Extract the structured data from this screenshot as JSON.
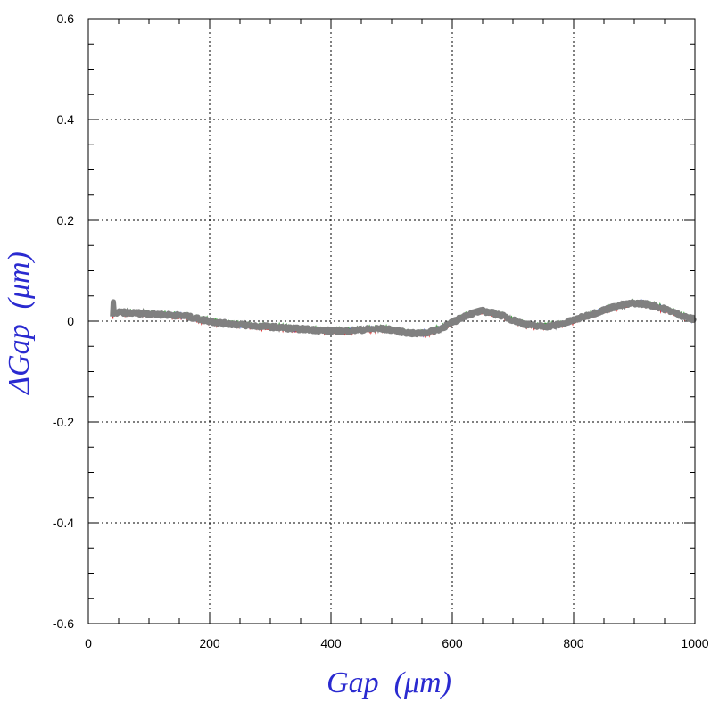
{
  "chart_data": {
    "type": "line",
    "title": "",
    "xlabel": "Gap  (μm)",
    "ylabel": "ΔGap  (μm)",
    "xlim": [
      0,
      1000
    ],
    "ylim": [
      -0.6,
      0.6
    ],
    "x_ticks": [
      0,
      200,
      400,
      600,
      800,
      1000
    ],
    "x_tick_labels": [
      "0",
      "200",
      "400",
      "600",
      "800",
      "1000"
    ],
    "y_ticks": [
      -0.6,
      -0.4,
      -0.2,
      0,
      0.2,
      0.4,
      0.6
    ],
    "y_tick_labels": [
      "-0.6",
      "-0.4",
      "-0.2",
      "0",
      "0.2",
      "0.4",
      "0.6"
    ],
    "grid": true,
    "grid_style": "dotted",
    "colors": {
      "axis_title": "#2a2ad0",
      "series_main": "#808080",
      "series_under_red": "#e03030",
      "series_under_green": "#40a040",
      "series_under_blue": "#3050d0"
    },
    "series": [
      {
        "x": [
          40,
          41,
          42,
          44,
          50,
          60,
          80,
          100,
          120,
          140,
          160,
          180,
          200,
          220,
          240,
          260,
          280,
          300,
          320,
          340,
          360,
          380,
          400,
          420,
          440,
          460,
          480,
          500,
          520,
          540,
          560,
          580,
          600,
          620,
          640,
          650,
          660,
          680,
          700,
          720,
          740,
          760,
          780,
          800,
          820,
          840,
          860,
          880,
          900,
          920,
          940,
          960,
          980,
          1000
        ],
        "y": [
          0.01,
          0.04,
          0.02,
          0.016,
          0.017,
          0.017,
          0.016,
          0.015,
          0.013,
          0.012,
          0.01,
          0.005,
          0.0,
          -0.004,
          -0.006,
          -0.008,
          -0.01,
          -0.011,
          -0.013,
          -0.015,
          -0.016,
          -0.018,
          -0.019,
          -0.02,
          -0.018,
          -0.016,
          -0.015,
          -0.017,
          -0.022,
          -0.025,
          -0.022,
          -0.015,
          -0.003,
          0.01,
          0.018,
          0.02,
          0.018,
          0.012,
          0.002,
          -0.006,
          -0.01,
          -0.01,
          -0.006,
          0.002,
          0.01,
          0.018,
          0.026,
          0.032,
          0.036,
          0.034,
          0.028,
          0.02,
          0.01,
          0.003
        ]
      }
    ]
  }
}
